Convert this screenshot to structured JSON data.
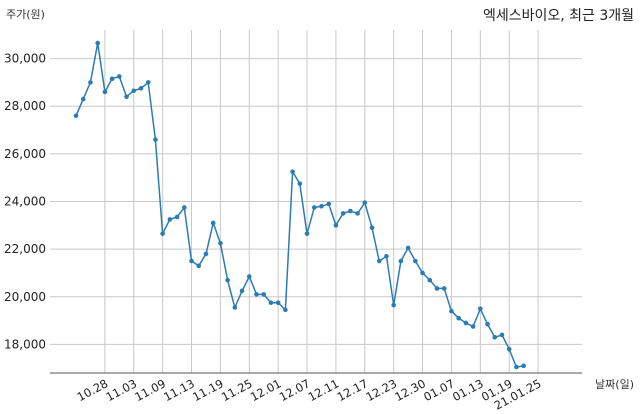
{
  "chart_data": {
    "type": "line",
    "title": "엑세스바이오, 최근 3개월",
    "ylabel": "주가(원)",
    "xlabel": "날짜(일)",
    "ylim": [
      16800,
      31200
    ],
    "yticks": [
      18000,
      20000,
      22000,
      24000,
      26000,
      28000,
      30000
    ],
    "ytick_labels": [
      "18,000",
      "20,000",
      "22,000",
      "24,000",
      "26,000",
      "28,000",
      "30,000"
    ],
    "grid": true,
    "xtick_labels": [
      {
        "index": 4,
        "label": "10.28"
      },
      {
        "index": 8,
        "label": "11.03"
      },
      {
        "index": 12,
        "label": "11.09"
      },
      {
        "index": 16,
        "label": "11.13"
      },
      {
        "index": 20,
        "label": "11.19"
      },
      {
        "index": 24,
        "label": "11.25"
      },
      {
        "index": 28,
        "label": "12.01"
      },
      {
        "index": 32,
        "label": "12.07"
      },
      {
        "index": 36,
        "label": "12.11"
      },
      {
        "index": 40,
        "label": "12.17"
      },
      {
        "index": 44,
        "label": "12.23"
      },
      {
        "index": 48,
        "label": "12.30"
      },
      {
        "index": 52,
        "label": "01.07"
      },
      {
        "index": 56,
        "label": "01.13"
      },
      {
        "index": 60,
        "label": "01.19"
      },
      {
        "index": 64,
        "label": "21.01.25"
      }
    ],
    "series": [
      {
        "color": "#2b7bb5",
        "values": [
          27600,
          28300,
          29000,
          30650,
          28600,
          29150,
          29250,
          28400,
          28650,
          28750,
          29000,
          26600,
          22650,
          23250,
          23350,
          23750,
          21500,
          21300,
          21800,
          23100,
          22250,
          20700,
          19550,
          20250,
          20850,
          20100,
          20100,
          19750,
          19750,
          19450,
          25250,
          24750,
          22650,
          23750,
          23800,
          23900,
          23000,
          23500,
          23600,
          23500,
          23950,
          22900,
          21500,
          21700,
          19650,
          21500,
          22050,
          21500,
          21000,
          20700,
          20350,
          20350,
          19400,
          19100,
          18900,
          18750,
          19500,
          18850,
          18300,
          18400,
          17800,
          17050,
          17100
        ]
      }
    ]
  }
}
